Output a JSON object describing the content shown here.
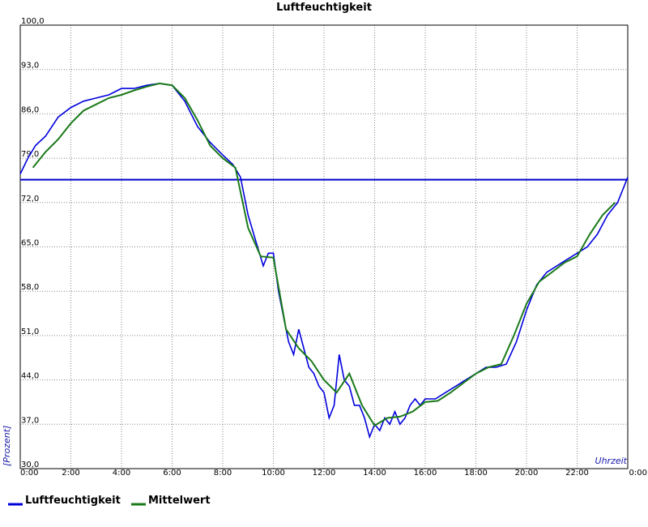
{
  "chart_data": {
    "type": "line",
    "title": "Luftfeuchtigkeit",
    "xlabel": "Uhrzeit",
    "ylabel": "[Prozent]",
    "x_unit": "hours",
    "xlim": [
      0,
      24
    ],
    "ylim": [
      30,
      100
    ],
    "y_ticks": [
      30,
      37,
      44,
      51,
      58,
      65,
      72,
      79,
      86,
      93,
      100
    ],
    "y_tick_labels": [
      "30,0",
      "37,0",
      "44,0",
      "51,0",
      "58,0",
      "65,0",
      "72,0",
      "79,0",
      "86,0",
      "93,0",
      "100,0"
    ],
    "x_ticks": [
      0,
      2,
      4,
      6,
      8,
      10,
      12,
      14,
      16,
      18,
      20,
      22,
      24
    ],
    "x_tick_labels": [
      "0:00",
      "2:00",
      "4:00",
      "6:00",
      "8:00",
      "10:00",
      "12:00",
      "14:00",
      "16:00",
      "18:00",
      "20:00",
      "22:00",
      "0:00"
    ],
    "grid": true,
    "legend_position": "bottom-left",
    "reference_line": {
      "value": 75.6,
      "color": "#0000cc"
    },
    "series": [
      {
        "name": "Luftfeuchtigkeit",
        "color": "#0000dd",
        "x": [
          0.0,
          0.3,
          0.6,
          1.0,
          1.5,
          2.0,
          2.5,
          3.0,
          3.5,
          4.0,
          4.5,
          5.0,
          5.5,
          6.0,
          6.5,
          7.0,
          7.5,
          8.0,
          8.4,
          8.7,
          9.0,
          9.3,
          9.6,
          9.8,
          10.0,
          10.2,
          10.4,
          10.6,
          10.8,
          11.0,
          11.2,
          11.4,
          11.6,
          11.8,
          12.0,
          12.2,
          12.4,
          12.6,
          12.8,
          13.0,
          13.2,
          13.4,
          13.6,
          13.8,
          14.0,
          14.2,
          14.4,
          14.6,
          14.8,
          15.0,
          15.2,
          15.4,
          15.6,
          15.8,
          16.0,
          16.4,
          16.8,
          17.2,
          17.6,
          18.0,
          18.4,
          18.8,
          19.2,
          19.6,
          20.0,
          20.4,
          20.8,
          21.2,
          21.6,
          22.0,
          22.4,
          22.8,
          23.2,
          23.6,
          24.0
        ],
        "values": [
          76.5,
          79,
          81,
          82.5,
          85.5,
          87,
          88,
          88.5,
          89,
          90,
          90,
          90.5,
          90.8,
          90.5,
          88,
          84,
          81.5,
          79.5,
          78,
          76,
          70,
          66,
          62,
          64,
          64,
          58,
          54,
          50,
          48,
          52,
          49,
          46,
          45,
          43,
          42,
          38,
          40,
          48,
          44,
          43,
          40,
          40,
          38,
          35,
          37,
          36,
          38,
          37,
          39,
          37,
          38,
          40,
          41,
          40,
          41,
          41,
          42,
          43,
          44,
          45,
          46,
          46,
          46.5,
          50,
          55,
          59,
          61,
          62,
          63,
          64,
          65,
          67,
          70,
          72,
          76
        ]
      },
      {
        "name": "Mittelwert",
        "color": "#1a7a1a",
        "x": [
          0.5,
          1.0,
          1.5,
          2.0,
          2.5,
          3.0,
          3.5,
          4.0,
          4.5,
          5.0,
          5.5,
          6.0,
          6.5,
          7.0,
          7.5,
          8.0,
          8.5,
          9.0,
          9.5,
          10.0,
          10.5,
          11.0,
          11.5,
          12.0,
          12.5,
          13.0,
          13.5,
          14.0,
          14.5,
          15.0,
          15.5,
          16.0,
          16.5,
          17.0,
          17.5,
          18.0,
          18.5,
          19.0,
          19.5,
          20.0,
          20.5,
          21.0,
          21.5,
          22.0,
          22.5,
          23.0,
          23.5
        ],
        "values": [
          77.5,
          80,
          82,
          84.5,
          86.5,
          87.5,
          88.5,
          89,
          89.7,
          90.3,
          90.8,
          90.5,
          88.5,
          85,
          81,
          79,
          77.5,
          68,
          63.5,
          63.3,
          52,
          49,
          47,
          44,
          42,
          45,
          40,
          36.8,
          38,
          38.2,
          39,
          40.5,
          40.7,
          42,
          43.5,
          45,
          46,
          46.5,
          51,
          56,
          59.5,
          61,
          62.5,
          63.5,
          67,
          70,
          72
        ]
      }
    ]
  }
}
